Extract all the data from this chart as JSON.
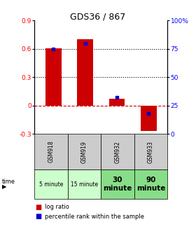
{
  "title": "GDS36 / 867",
  "samples": [
    "GSM918",
    "GSM919",
    "GSM932",
    "GSM933"
  ],
  "time_labels": [
    "5 minute",
    "15 minute",
    "30\nminute",
    "90\nminute"
  ],
  "time_small": [
    true,
    true,
    false,
    false
  ],
  "log_ratios": [
    0.61,
    0.7,
    0.07,
    -0.27
  ],
  "percentile_ranks_pct": [
    75,
    80,
    32,
    18
  ],
  "bar_color": "#cc0000",
  "dot_color": "#0000cc",
  "ylim_left": [
    -0.3,
    0.9
  ],
  "ylim_right": [
    0,
    100
  ],
  "yticks_left": [
    -0.3,
    0.0,
    0.3,
    0.6,
    0.9
  ],
  "yticks_right": [
    0,
    25,
    50,
    75,
    100
  ],
  "ytick_labels_left": [
    "-0.3",
    "0",
    "0.3",
    "0.6",
    "0.9"
  ],
  "ytick_labels_right": [
    "0",
    "25",
    "50",
    "75",
    "100%"
  ],
  "hline_y": 0.0,
  "dotted_lines": [
    0.3,
    0.6
  ],
  "cell_bg_light_green": "#ccffcc",
  "cell_bg_green": "#88dd88",
  "cell_bg_gray": "#cccccc",
  "bar_width": 0.5,
  "title_fontsize": 9
}
